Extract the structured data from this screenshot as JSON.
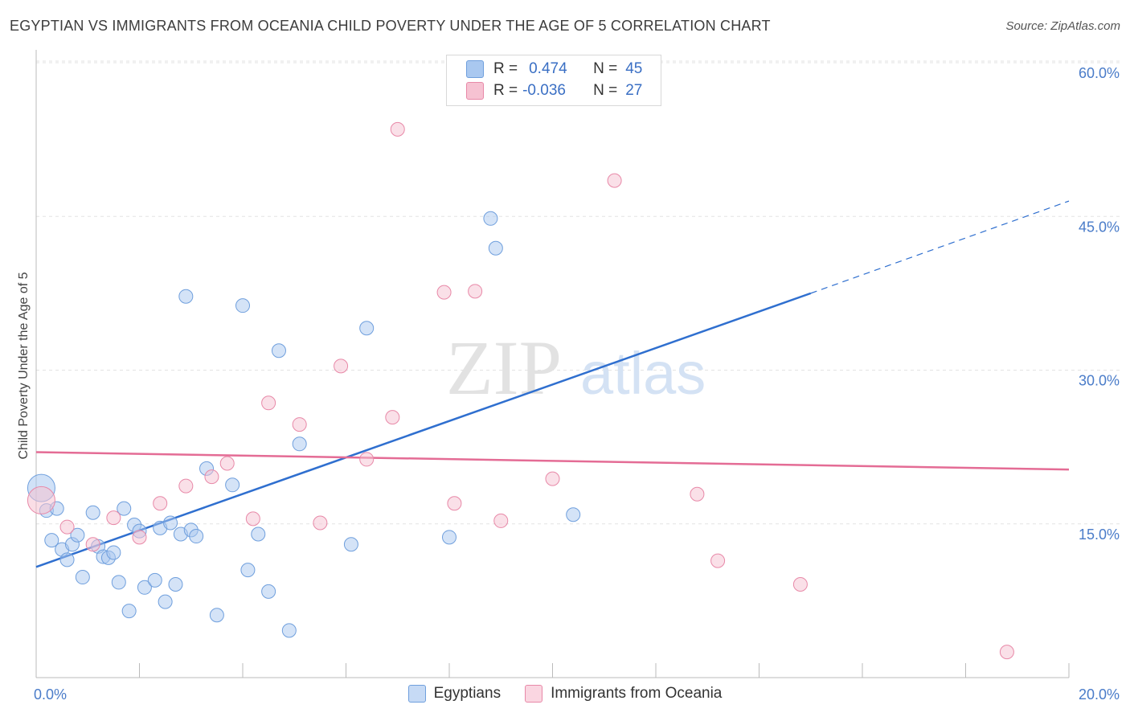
{
  "title": "EGYPTIAN VS IMMIGRANTS FROM OCEANIA CHILD POVERTY UNDER THE AGE OF 5 CORRELATION CHART",
  "source": "Source: ZipAtlas.com",
  "watermark": {
    "zip": "ZIP",
    "atlas": "atlas"
  },
  "stats": [
    {
      "r_label": "R =",
      "r_value": "0.474",
      "n_label": "N =",
      "n_value": "45",
      "color": "#a9c8f0",
      "border": "#6f9fdd"
    },
    {
      "r_label": "R =",
      "r_value": "-0.036",
      "n_label": "N =",
      "n_value": "27",
      "color": "#f6c2d2",
      "border": "#e889a8"
    }
  ],
  "chart_data": {
    "type": "scatter",
    "title": "EGYPTIAN VS IMMIGRANTS FROM OCEANIA CHILD POVERTY UNDER THE AGE OF 5 CORRELATION CHART",
    "xlabel": "",
    "ylabel": "Child Poverty Under the Age of 5",
    "xlim": [
      0,
      20
    ],
    "ylim": [
      0,
      63
    ],
    "x_tick_labels": [
      "0.0%",
      "20.0%"
    ],
    "y_ticks": [
      15,
      30,
      45,
      60
    ],
    "y_tick_labels": [
      "15.0%",
      "30.0%",
      "45.0%",
      "60.0%"
    ],
    "grid": true,
    "legend_position": "bottom",
    "series": [
      {
        "name": "Egyptians",
        "color": "#a9c8f0",
        "stroke": "#6f9fdd",
        "line_color": "#2f6fcf",
        "trend": {
          "x_start": 0,
          "y_start": 10.8,
          "x_solid_end": 15.0,
          "y_solid_end": 37.5,
          "x_end": 20.0,
          "y_end": 46.5
        },
        "points": [
          [
            0.1,
            18.5
          ],
          [
            0.2,
            16.3
          ],
          [
            0.4,
            16.5
          ],
          [
            0.3,
            13.4
          ],
          [
            0.5,
            12.5
          ],
          [
            0.6,
            11.5
          ],
          [
            0.7,
            13.0
          ],
          [
            0.8,
            13.9
          ],
          [
            0.9,
            9.8
          ],
          [
            1.1,
            16.1
          ],
          [
            1.2,
            12.8
          ],
          [
            1.3,
            11.8
          ],
          [
            1.4,
            11.7
          ],
          [
            1.5,
            12.2
          ],
          [
            1.6,
            9.3
          ],
          [
            1.7,
            16.5
          ],
          [
            1.8,
            6.5
          ],
          [
            1.9,
            14.9
          ],
          [
            2.0,
            14.3
          ],
          [
            2.1,
            8.8
          ],
          [
            2.3,
            9.5
          ],
          [
            2.4,
            14.6
          ],
          [
            2.5,
            7.4
          ],
          [
            2.6,
            15.1
          ],
          [
            2.7,
            9.1
          ],
          [
            2.8,
            14.0
          ],
          [
            2.9,
            37.2
          ],
          [
            3.0,
            14.4
          ],
          [
            3.1,
            13.8
          ],
          [
            3.3,
            20.4
          ],
          [
            3.5,
            6.1
          ],
          [
            3.8,
            18.8
          ],
          [
            4.0,
            36.3
          ],
          [
            4.1,
            10.5
          ],
          [
            4.3,
            14.0
          ],
          [
            4.5,
            8.4
          ],
          [
            4.7,
            31.9
          ],
          [
            4.9,
            4.6
          ],
          [
            5.1,
            22.8
          ],
          [
            6.1,
            13.0
          ],
          [
            6.4,
            34.1
          ],
          [
            8.0,
            13.7
          ],
          [
            8.8,
            44.8
          ],
          [
            8.9,
            41.9
          ],
          [
            10.4,
            15.9
          ]
        ]
      },
      {
        "name": "Immigrants from Oceania",
        "color": "#f6c2d2",
        "stroke": "#e889a8",
        "line_color": "#e46c95",
        "trend": {
          "x_start": 0,
          "y_start": 22.0,
          "x_solid_end": 20.0,
          "y_solid_end": 20.3,
          "x_end": 20.0,
          "y_end": 20.3
        },
        "points": [
          [
            0.1,
            17.3
          ],
          [
            0.6,
            14.7
          ],
          [
            1.1,
            13.0
          ],
          [
            1.5,
            15.6
          ],
          [
            2.0,
            13.7
          ],
          [
            2.4,
            17.0
          ],
          [
            2.9,
            18.7
          ],
          [
            3.4,
            19.6
          ],
          [
            3.7,
            20.9
          ],
          [
            4.2,
            15.5
          ],
          [
            4.5,
            26.8
          ],
          [
            5.1,
            24.7
          ],
          [
            5.5,
            15.1
          ],
          [
            5.9,
            30.4
          ],
          [
            6.4,
            21.3
          ],
          [
            6.9,
            25.4
          ],
          [
            7.0,
            53.5
          ],
          [
            7.9,
            37.6
          ],
          [
            8.1,
            17.0
          ],
          [
            8.5,
            37.7
          ],
          [
            9.0,
            15.3
          ],
          [
            10.0,
            19.4
          ],
          [
            11.2,
            48.5
          ],
          [
            12.8,
            17.9
          ],
          [
            13.2,
            11.4
          ],
          [
            14.8,
            9.1
          ],
          [
            18.8,
            2.5
          ]
        ]
      }
    ]
  }
}
